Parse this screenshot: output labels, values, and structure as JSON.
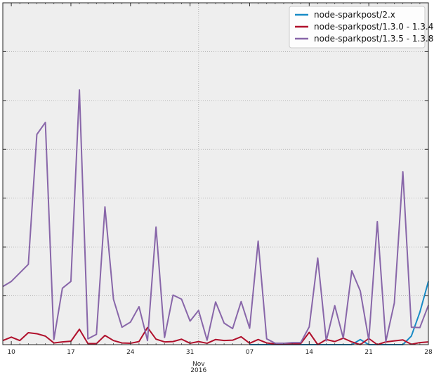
{
  "chart_data": {
    "type": "line",
    "grid": true,
    "legend_position": "top-right",
    "x": [
      "2016-10-09",
      "2016-10-10",
      "2016-10-11",
      "2016-10-12",
      "2016-10-13",
      "2016-10-14",
      "2016-10-15",
      "2016-10-16",
      "2016-10-17",
      "2016-10-18",
      "2016-10-19",
      "2016-10-20",
      "2016-10-21",
      "2016-10-22",
      "2016-10-23",
      "2016-10-24",
      "2016-10-25",
      "2016-10-26",
      "2016-10-27",
      "2016-10-28",
      "2016-10-29",
      "2016-10-30",
      "2016-10-31",
      "2016-11-01",
      "2016-11-02",
      "2016-11-03",
      "2016-11-04",
      "2016-11-05",
      "2016-11-06",
      "2016-11-07",
      "2016-11-08",
      "2016-11-09",
      "2016-11-10",
      "2016-11-11",
      "2016-11-12",
      "2016-11-13",
      "2016-11-14",
      "2016-11-15",
      "2016-11-16",
      "2016-11-17",
      "2016-11-18",
      "2016-11-19",
      "2016-11-20",
      "2016-11-21",
      "2016-11-22",
      "2016-11-23",
      "2016-11-24",
      "2016-11-25",
      "2016-11-26",
      "2016-11-27",
      "2016-11-28"
    ],
    "xlim": [
      "2016-10-09",
      "2016-11-28"
    ],
    "ylim": [
      0,
      100
    ],
    "x_ticks": [
      {
        "date": "2016-10-10",
        "label": "10"
      },
      {
        "date": "2016-10-17",
        "label": "17"
      },
      {
        "date": "2016-10-24",
        "label": "24"
      },
      {
        "date": "2016-10-31",
        "label": "31"
      },
      {
        "date": "2016-11-07",
        "label": "07"
      },
      {
        "date": "2016-11-14",
        "label": "14"
      },
      {
        "date": "2016-11-21",
        "label": "21"
      },
      {
        "date": "2016-11-28",
        "label": "28"
      }
    ],
    "x_month_label": {
      "date": "2016-11-01",
      "month": "Nov",
      "year": "2016"
    },
    "series": [
      {
        "name": "node-sparkpost/2.x",
        "color": "#188bc6",
        "values": [
          null,
          null,
          null,
          null,
          null,
          null,
          null,
          null,
          null,
          null,
          null,
          null,
          null,
          null,
          null,
          null,
          null,
          null,
          null,
          null,
          null,
          null,
          null,
          null,
          null,
          null,
          null,
          null,
          null,
          0,
          0,
          0,
          0,
          0,
          0,
          0,
          0,
          0,
          0,
          0,
          0,
          0,
          1.5,
          0,
          0,
          0,
          0,
          0,
          2.5,
          9.5,
          18.5
        ]
      },
      {
        "name": "node-sparkpost/1.3.0 - 1.3.4",
        "color": "#b0102c",
        "values": [
          1.2,
          2.2,
          1.2,
          3.5,
          3.2,
          2.5,
          0.5,
          0.8,
          1,
          4.5,
          0.3,
          0.3,
          2.7,
          1.2,
          0.5,
          0.4,
          0.9,
          5,
          1.6,
          0.8,
          0.9,
          1.6,
          0.4,
          0.9,
          0.4,
          1.5,
          1.2,
          1.3,
          2.3,
          0.4,
          1.5,
          0.5,
          0.2,
          0.2,
          0.2,
          0.3,
          3.6,
          0,
          1.5,
          0.9,
          1.9,
          0.8,
          0,
          1.8,
          0,
          0.8,
          1.1,
          1.4,
          0.1,
          0.6,
          0.8
        ]
      },
      {
        "name": "node-sparkpost/1.3.5 - 1.3.8",
        "color": "#8866a9",
        "values": [
          17,
          18.5,
          21,
          23.5,
          61.5,
          65,
          1.5,
          16.5,
          18.5,
          74.5,
          1.7,
          3,
          40.3,
          13.3,
          5.1,
          6.6,
          11.1,
          1.2,
          34.4,
          2.1,
          14.5,
          13.3,
          6.9,
          10,
          1.3,
          12.5,
          6.3,
          4.7,
          12.6,
          4.8,
          30.3,
          1.7,
          0.4,
          0.4,
          0.6,
          0.6,
          5.2,
          25.3,
          1.1,
          11.4,
          1.9,
          21.6,
          15.7,
          1.3,
          36,
          0.9,
          12.2,
          50.6,
          5.1,
          5,
          11.5
        ]
      }
    ]
  }
}
